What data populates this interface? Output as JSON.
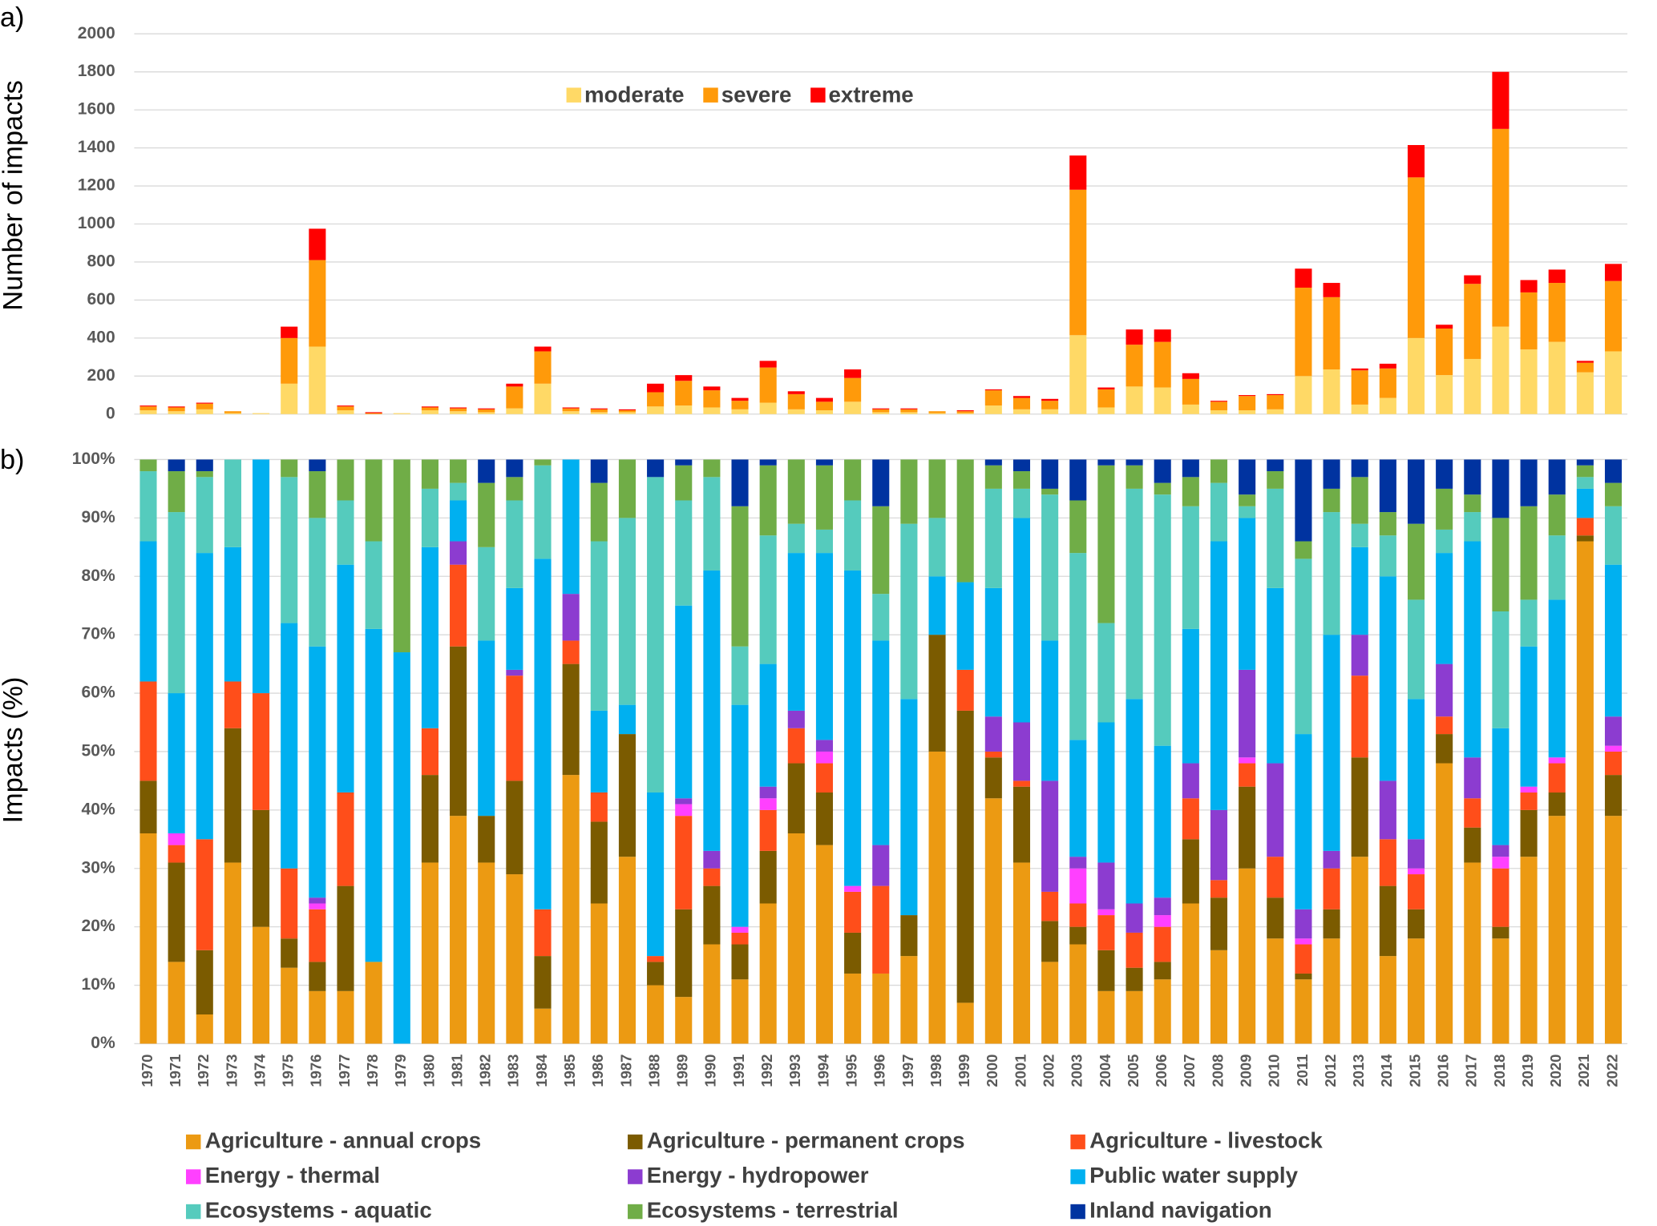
{
  "chart_data": [
    {
      "type": "stacked_bar",
      "label": "a)",
      "y_label": "Number of impacts",
      "legend": "top",
      "grid": true,
      "ylim": [
        0,
        2000
      ],
      "yticks": [
        0,
        200,
        400,
        600,
        800,
        1000,
        1200,
        1400,
        1600,
        1800,
        2000
      ],
      "series": [
        {
          "name": "moderate",
          "color": "#ffd966",
          "values": [
            20,
            15,
            25,
            5,
            5,
            160,
            355,
            20,
            0,
            5,
            20,
            15,
            10,
            30,
            160,
            15,
            10,
            10,
            40,
            45,
            35,
            25,
            60,
            25,
            20,
            65,
            10,
            10,
            5,
            5,
            45,
            25,
            25,
            415,
            35,
            145,
            140,
            50,
            20,
            20,
            25,
            200,
            235,
            50,
            85,
            400,
            205,
            290,
            460,
            340,
            380,
            220,
            330
          ]
        },
        {
          "name": "severe",
          "color": "#ff9a0a",
          "values": [
            20,
            20,
            30,
            10,
            0,
            240,
            455,
            20,
            5,
            0,
            15,
            15,
            15,
            115,
            170,
            15,
            15,
            10,
            75,
            130,
            90,
            45,
            185,
            80,
            45,
            125,
            15,
            15,
            10,
            10,
            80,
            60,
            45,
            765,
            95,
            220,
            240,
            135,
            45,
            75,
            75,
            465,
            380,
            180,
            155,
            845,
            245,
            395,
            1040,
            300,
            310,
            50,
            370
          ]
        },
        {
          "name": "extreme",
          "color": "#ff0000",
          "values": [
            5,
            5,
            5,
            0,
            0,
            60,
            165,
            5,
            5,
            0,
            5,
            5,
            5,
            15,
            25,
            5,
            5,
            5,
            45,
            30,
            20,
            15,
            35,
            15,
            20,
            45,
            5,
            5,
            0,
            5,
            5,
            10,
            10,
            180,
            10,
            80,
            65,
            30,
            5,
            5,
            5,
            100,
            75,
            10,
            25,
            170,
            20,
            45,
            300,
            65,
            70,
            10,
            90
          ]
        }
      ]
    },
    {
      "type": "stacked_bar",
      "label": "b)",
      "y_label": "Impacts (%)",
      "legend": "bottom",
      "grid": true,
      "categories": [
        "1970",
        "1971",
        "1972",
        "1973",
        "1974",
        "1975",
        "1976",
        "1977",
        "1978",
        "1979",
        "1980",
        "1981",
        "1982",
        "1983",
        "1984",
        "1985",
        "1986",
        "1987",
        "1988",
        "1989",
        "1990",
        "1991",
        "1992",
        "1993",
        "1994",
        "1995",
        "1996",
        "1997",
        "1998",
        "1999",
        "2000",
        "2001",
        "2002",
        "2003",
        "2004",
        "2005",
        "2006",
        "2007",
        "2008",
        "2009",
        "2010",
        "2011",
        "2012",
        "2013",
        "2014",
        "2015",
        "2016",
        "2017",
        "2018",
        "2019",
        "2020",
        "2021",
        "2022"
      ],
      "ylim": [
        0,
        100
      ],
      "yticks": [
        {
          "value": 0,
          "label": "0%"
        },
        {
          "value": 10,
          "label": "10%"
        },
        {
          "value": 20,
          "label": "20%"
        },
        {
          "value": 30,
          "label": "30%"
        },
        {
          "value": 40,
          "label": "40%"
        },
        {
          "value": 50,
          "label": "50%"
        },
        {
          "value": 60,
          "label": "60%"
        },
        {
          "value": 70,
          "label": "70%"
        },
        {
          "value": 80,
          "label": "80%"
        },
        {
          "value": 90,
          "label": "90%"
        },
        {
          "value": 100,
          "label": "100%"
        }
      ],
      "series": [
        {
          "name": "Agriculture - annual crops",
          "color": "#ec9a12",
          "values": [
            36,
            14,
            5,
            31,
            20,
            13,
            9,
            9,
            14,
            0,
            31,
            39,
            31,
            29,
            6,
            46,
            24,
            32,
            10,
            8,
            17,
            11,
            24,
            36,
            34,
            12,
            12,
            15,
            50,
            7,
            42,
            31,
            14,
            17,
            9,
            9,
            11,
            24,
            16,
            30,
            18,
            11,
            18,
            32,
            15,
            18,
            48,
            31,
            18,
            32,
            39,
            86,
            39
          ]
        },
        {
          "name": "Agriculture - permanent crops",
          "color": "#7b5b00",
          "values": [
            9,
            17,
            11,
            23,
            20,
            5,
            5,
            18,
            0,
            0,
            15,
            29,
            8,
            16,
            9,
            19,
            14,
            21,
            4,
            15,
            10,
            6,
            9,
            12,
            9,
            7,
            0,
            7,
            20,
            50,
            7,
            13,
            7,
            3,
            7,
            4,
            3,
            11,
            9,
            14,
            7,
            1,
            5,
            17,
            12,
            5,
            5,
            6,
            2,
            8,
            4,
            1,
            7
          ]
        },
        {
          "name": "Agriculture - livestock",
          "color": "#ff4e1a",
          "values": [
            17,
            3,
            19,
            8,
            20,
            12,
            9,
            16,
            0,
            0,
            8,
            14,
            0,
            18,
            8,
            4,
            5,
            0,
            1,
            16,
            3,
            2,
            7,
            6,
            5,
            7,
            15,
            0,
            0,
            7,
            1,
            1,
            5,
            4,
            6,
            6,
            6,
            7,
            3,
            4,
            7,
            5,
            7,
            14,
            8,
            6,
            3,
            5,
            10,
            3,
            5,
            3,
            4
          ]
        },
        {
          "name": "Energy - thermal",
          "color": "#ff40ff",
          "values": [
            0,
            2,
            0,
            0,
            0,
            0,
            1,
            0,
            0,
            0,
            0,
            0,
            0,
            0,
            0,
            0,
            0,
            0,
            0,
            2,
            0,
            1,
            2,
            0,
            2,
            1,
            0,
            0,
            0,
            0,
            0,
            0,
            0,
            6,
            1,
            0,
            2,
            0,
            0,
            1,
            0,
            1,
            0,
            0,
            0,
            1,
            0,
            0,
            2,
            1,
            1,
            0,
            1
          ]
        },
        {
          "name": "Energy - hydropower",
          "color": "#8c3cd0",
          "values": [
            0,
            0,
            0,
            0,
            0,
            0,
            1,
            0,
            0,
            0,
            0,
            4,
            0,
            1,
            0,
            8,
            0,
            0,
            0,
            1,
            3,
            0,
            2,
            3,
            2,
            0,
            7,
            0,
            0,
            0,
            6,
            10,
            19,
            2,
            8,
            5,
            3,
            6,
            12,
            15,
            16,
            5,
            3,
            7,
            10,
            5,
            9,
            7,
            2,
            0,
            0,
            0,
            5
          ]
        },
        {
          "name": "Public water supply",
          "color": "#00b0f0",
          "values": [
            24,
            24,
            49,
            23,
            40,
            42,
            43,
            39,
            57,
            67,
            31,
            7,
            30,
            14,
            60,
            23,
            14,
            5,
            28,
            33,
            48,
            38,
            21,
            27,
            32,
            54,
            35,
            37,
            10,
            15,
            22,
            35,
            24,
            20,
            24,
            35,
            26,
            23,
            46,
            26,
            30,
            30,
            37,
            15,
            35,
            24,
            19,
            37,
            20,
            24,
            27,
            5,
            26
          ]
        },
        {
          "name": "Ecosystems - aquatic",
          "color": "#55cbbd",
          "values": [
            12,
            31,
            13,
            15,
            0,
            25,
            22,
            11,
            15,
            0,
            10,
            3,
            16,
            15,
            16,
            0,
            29,
            32,
            54,
            18,
            16,
            10,
            22,
            5,
            4,
            12,
            8,
            30,
            10,
            0,
            17,
            5,
            25,
            32,
            17,
            36,
            43,
            21,
            10,
            2,
            17,
            30,
            21,
            4,
            7,
            17,
            4,
            5,
            20,
            8,
            11,
            2,
            10
          ]
        },
        {
          "name": "Ecosystems - terrestrial",
          "color": "#70ad47",
          "values": [
            2,
            7,
            1,
            0,
            0,
            3,
            8,
            7,
            14,
            33,
            5,
            4,
            11,
            4,
            1,
            0,
            10,
            10,
            0,
            6,
            3,
            24,
            12,
            11,
            11,
            7,
            15,
            11,
            10,
            21,
            4,
            3,
            1,
            9,
            27,
            4,
            2,
            5,
            4,
            2,
            3,
            3,
            4,
            8,
            4,
            13,
            7,
            3,
            16,
            16,
            7,
            2,
            4
          ]
        },
        {
          "name": "Inland navigation",
          "color": "#0033a0",
          "values": [
            0,
            2,
            2,
            0,
            0,
            0,
            2,
            0,
            0,
            0,
            0,
            0,
            4,
            3,
            0,
            0,
            4,
            0,
            3,
            1,
            0,
            8,
            1,
            0,
            1,
            0,
            8,
            0,
            0,
            0,
            1,
            2,
            5,
            7,
            1,
            1,
            4,
            3,
            0,
            6,
            2,
            14,
            5,
            3,
            9,
            11,
            5,
            6,
            10,
            8,
            6,
            1,
            4
          ]
        }
      ]
    }
  ]
}
